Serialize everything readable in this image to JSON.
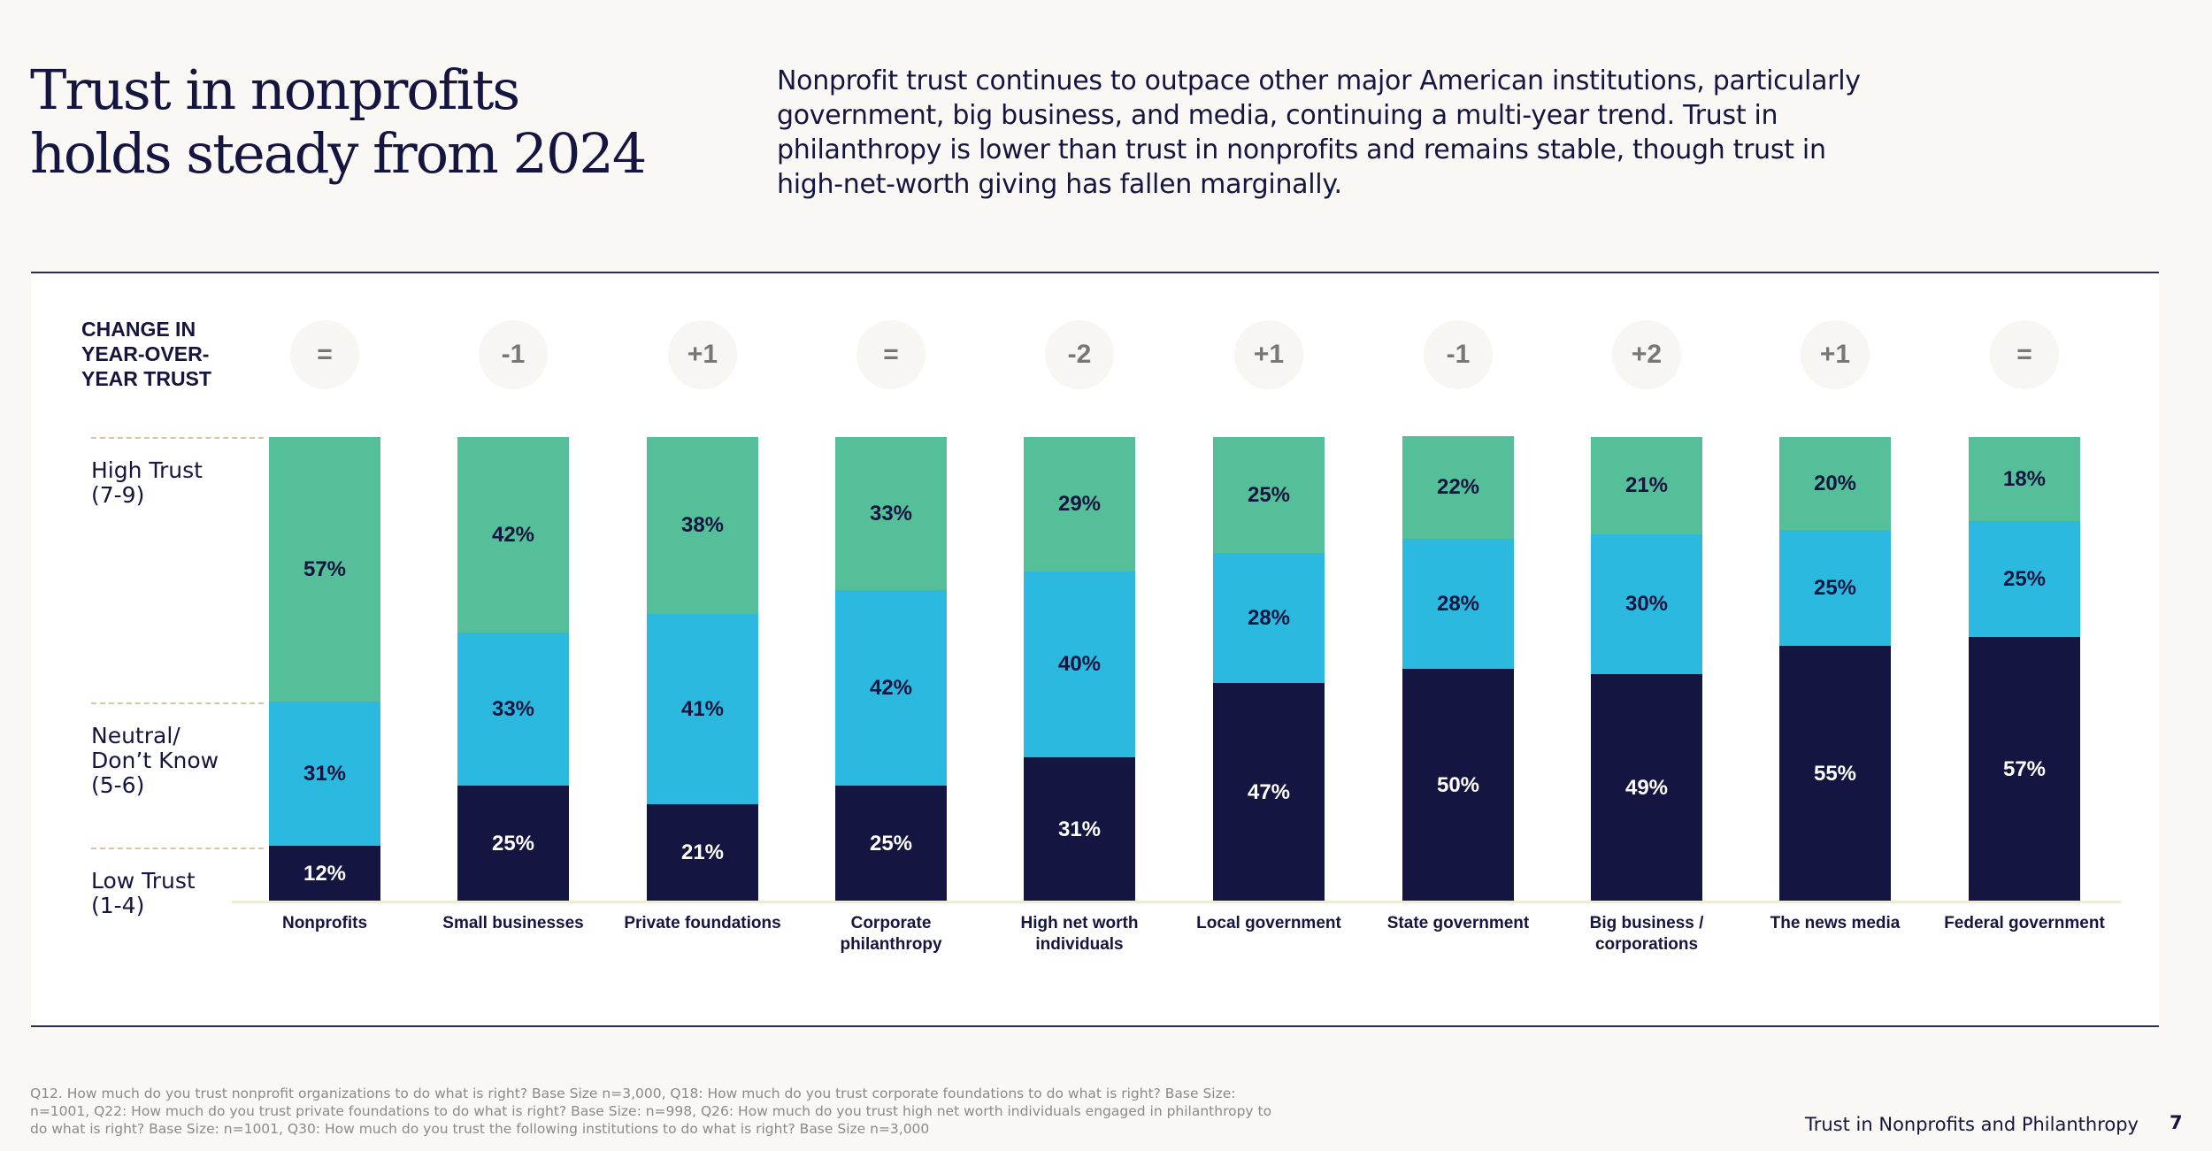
{
  "header": {
    "title_lines": [
      "Trust in nonprofits",
      "holds steady from 2024"
    ],
    "intro": "Nonprofit trust continues to outpace other major American institutions, particularly government, big business, and media, continuing a multi-year trend. Trust in philanthropy is lower than trust in nonprofits and remains stable, though trust in high-net-worth giving has fallen marginally."
  },
  "yoy": {
    "label_lines": [
      "CHANGE IN",
      "YEAR-OVER-",
      "YEAR TRUST"
    ]
  },
  "legend": {
    "high": [
      "High Trust",
      "(7-9)"
    ],
    "neutral": [
      "Neutral/",
      "Don’t Know",
      "(5-6)"
    ],
    "low": [
      "Low Trust",
      "(1-4)"
    ]
  },
  "colors": {
    "high": "#55bf9a",
    "neutral": "#2bb9e0",
    "low": "#151542"
  },
  "chart_data": {
    "type": "bar",
    "stacked": true,
    "title": "Trust in nonprofits holds steady from 2024",
    "xlabel": "",
    "ylabel": "",
    "ylim": [
      0,
      100
    ],
    "categories": [
      "Nonprofits",
      "Small businesses",
      "Private foundations",
      "Corporate philanthropy",
      "High net worth individuals",
      "Local government",
      "State government",
      "Big business / corporations",
      "The news media",
      "Federal government"
    ],
    "category_label_lines": [
      [
        "Nonprofits"
      ],
      [
        "Small businesses"
      ],
      [
        "Private foundations"
      ],
      [
        "Corporate",
        "philanthropy"
      ],
      [
        "High net worth",
        "individuals"
      ],
      [
        "Local government"
      ],
      [
        "State government"
      ],
      [
        "Big business /",
        "corporations"
      ],
      [
        "The news media"
      ],
      [
        "Federal government"
      ]
    ],
    "series": [
      {
        "name": "Low Trust (1-4)",
        "key": "low",
        "values": [
          12,
          25,
          21,
          25,
          31,
          47,
          50,
          49,
          55,
          57
        ]
      },
      {
        "name": "Neutral/Don’t Know (5-6)",
        "key": "neutral",
        "values": [
          31,
          33,
          41,
          42,
          40,
          28,
          28,
          30,
          25,
          25
        ]
      },
      {
        "name": "High Trust (7-9)",
        "key": "high",
        "values": [
          57,
          42,
          38,
          33,
          29,
          25,
          22,
          21,
          20,
          18
        ]
      }
    ],
    "yoy_change": [
      "=",
      "-1",
      "+1",
      "=",
      "-2",
      "+1",
      "-1",
      "+2",
      "+1",
      "="
    ],
    "legend": "left",
    "grid": false
  },
  "footer": {
    "footnote": "Q12. How much do you trust nonprofit organizations to do what is right? Base Size n=3,000, Q18: How much do you trust corporate foundations to do what is right? Base Size: n=1001, Q22: How much do you trust private foundations to do what is right? Base Size: n=998, Q26: How much do you trust high net worth individuals engaged in philanthropy to do what is right? Base Size: n=1001, Q30: How much do you trust the following institutions to do what is right? Base Size n=3,000",
    "report_title": "Trust in Nonprofits and Philanthropy",
    "page_number": "7"
  }
}
